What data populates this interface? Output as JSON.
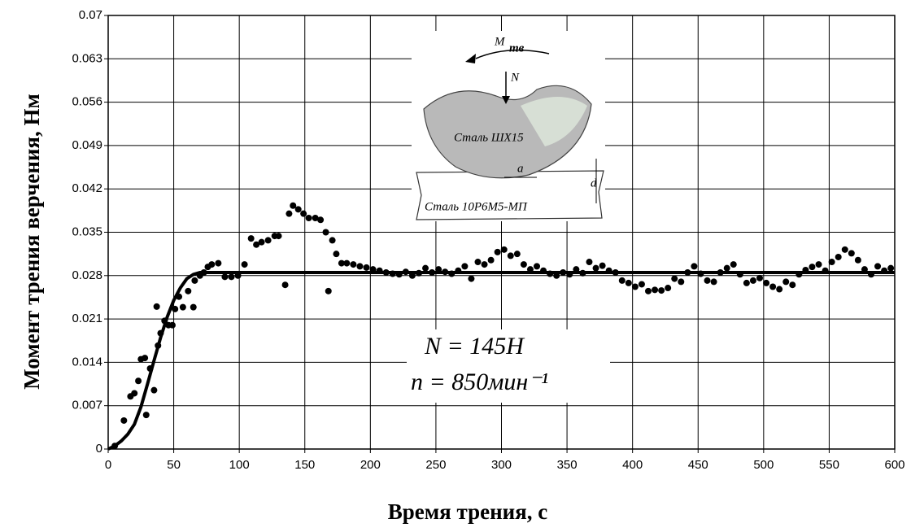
{
  "chart_data": {
    "type": "scatter",
    "x_label": "Время трения, с",
    "y_label": "Момент трения верчения, Нм",
    "xlim": [
      0,
      600
    ],
    "ylim": [
      0,
      0.07
    ],
    "xticks": [
      0,
      50,
      100,
      150,
      200,
      250,
      300,
      350,
      400,
      450,
      500,
      550,
      600
    ],
    "yticks": [
      0,
      0.007,
      0.014,
      0.021,
      0.028,
      0.035,
      0.042,
      0.049,
      0.056,
      0.063,
      0.07
    ],
    "grid": true,
    "annotations": [
      "N = 145H",
      "n = 850мин⁻¹"
    ],
    "inset_labels": [
      "M",
      "тв",
      "N",
      "Сталь ШХ15",
      "a",
      "d",
      "Сталь 10Р6М5-МП"
    ],
    "series": [
      {
        "type": "scatter",
        "color": "#000000",
        "x": [
          5,
          12,
          17,
          20,
          23,
          25,
          28,
          29,
          32,
          35,
          37,
          38,
          40,
          43,
          46,
          49,
          51,
          54,
          57,
          61,
          65,
          66,
          70,
          73,
          76,
          79,
          84,
          89,
          94,
          99,
          104,
          109,
          113,
          117,
          122,
          127,
          130,
          135,
          138,
          141,
          145,
          149,
          153,
          158,
          162,
          166,
          168,
          171,
          174,
          178,
          182,
          187,
          192,
          197,
          202,
          207,
          212,
          217,
          222,
          227,
          232,
          237,
          242,
          247,
          252,
          257,
          262,
          267,
          272,
          277,
          282,
          287,
          292,
          297,
          302,
          307,
          312,
          317,
          322,
          327,
          332,
          337,
          342,
          347,
          352,
          357,
          362,
          367,
          372,
          377,
          382,
          387,
          392,
          397,
          402,
          407,
          412,
          417,
          422,
          427,
          432,
          437,
          442,
          447,
          452,
          457,
          462,
          467,
          472,
          477,
          482,
          487,
          492,
          497,
          502,
          507,
          512,
          517,
          522,
          527,
          532,
          537,
          542,
          547,
          552,
          557,
          562,
          567,
          572,
          577,
          582,
          587,
          592,
          597
        ],
        "values": [
          0.0005,
          0.0046,
          0.0085,
          0.009,
          0.011,
          0.0145,
          0.0147,
          0.0055,
          0.013,
          0.0095,
          0.023,
          0.0167,
          0.0187,
          0.0207,
          0.02,
          0.02,
          0.0226,
          0.0246,
          0.0229,
          0.0255,
          0.0229,
          0.0272,
          0.028,
          0.0285,
          0.0294,
          0.0298,
          0.03,
          0.0278,
          0.0278,
          0.028,
          0.0298,
          0.034,
          0.033,
          0.0334,
          0.0337,
          0.0344,
          0.0344,
          0.0265,
          0.038,
          0.0393,
          0.0387,
          0.038,
          0.0373,
          0.0373,
          0.037,
          0.035,
          0.0255,
          0.0337,
          0.0315,
          0.03,
          0.03,
          0.0298,
          0.0295,
          0.0293,
          0.029,
          0.0288,
          0.0285,
          0.0283,
          0.0282,
          0.0286,
          0.028,
          0.0284,
          0.0292,
          0.0285,
          0.029,
          0.0286,
          0.0283,
          0.0288,
          0.0295,
          0.0275,
          0.0302,
          0.0298,
          0.0305,
          0.0318,
          0.0322,
          0.0312,
          0.0315,
          0.0298,
          0.029,
          0.0295,
          0.0288,
          0.0283,
          0.028,
          0.0285,
          0.0282,
          0.029,
          0.0284,
          0.0302,
          0.0292,
          0.0296,
          0.0288,
          0.0285,
          0.0272,
          0.0268,
          0.0262,
          0.0266,
          0.0255,
          0.0257,
          0.0256,
          0.026,
          0.0275,
          0.027,
          0.0285,
          0.0295,
          0.0283,
          0.0272,
          0.027,
          0.0285,
          0.0292,
          0.0298,
          0.0282,
          0.0268,
          0.0272,
          0.0276,
          0.0268,
          0.0262,
          0.0258,
          0.027,
          0.0265,
          0.0282,
          0.0289,
          0.0294,
          0.0298,
          0.0288,
          0.0302,
          0.031,
          0.0322,
          0.0316,
          0.0305,
          0.029,
          0.0282,
          0.0295,
          0.0288,
          0.0292
        ]
      },
      {
        "type": "line",
        "color": "#000000",
        "x": [
          0,
          5,
          10,
          15,
          20,
          25,
          30,
          35,
          40,
          45,
          50,
          55,
          60,
          65,
          70,
          600
        ],
        "values": [
          0,
          0.0005,
          0.0013,
          0.0024,
          0.004,
          0.0068,
          0.0105,
          0.0143,
          0.018,
          0.0213,
          0.024,
          0.026,
          0.0275,
          0.0282,
          0.0285,
          0.0285
        ]
      }
    ]
  }
}
